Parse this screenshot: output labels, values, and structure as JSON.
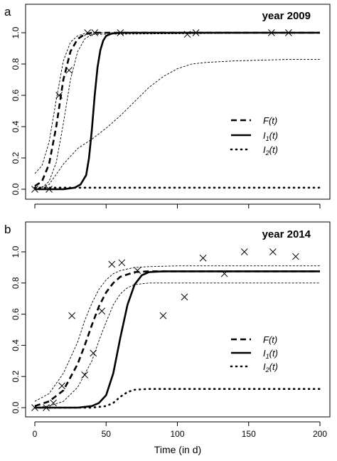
{
  "chart_data": [
    {
      "type": "line",
      "panel_label": "a",
      "title": "year  2009",
      "xlabel": "",
      "ylabel": "",
      "xlim": [
        0,
        200
      ],
      "ylim": [
        0,
        1.0
      ],
      "x_ticks": [
        0,
        50,
        100,
        150,
        200
      ],
      "y_ticks": [
        "0.0",
        "0.2",
        "0.4",
        "0.6",
        "0.8",
        "1.0"
      ],
      "legend": {
        "placement": "right-middle"
      },
      "series": [
        {
          "name": "F(t)",
          "label_main": "F",
          "label_sub": "",
          "label_arg": "(t)",
          "style": "dashed",
          "x": [
            0,
            5,
            10,
            15,
            20,
            25,
            30,
            35,
            40,
            50,
            60,
            100,
            150,
            200
          ],
          "y": [
            0.02,
            0.05,
            0.16,
            0.4,
            0.7,
            0.88,
            0.96,
            0.99,
            1.0,
            1.0,
            1.0,
            1.0,
            1.0,
            1.0
          ]
        },
        {
          "name": "I1(t)",
          "label_main": "I",
          "label_sub": "1",
          "label_arg": "(t)",
          "style": "solid",
          "x": [
            0,
            20,
            28,
            32,
            36,
            38,
            40,
            42,
            44,
            46,
            48,
            50,
            54,
            60,
            70,
            100,
            150,
            200
          ],
          "y": [
            0.0,
            0.0,
            0.01,
            0.03,
            0.09,
            0.2,
            0.38,
            0.6,
            0.78,
            0.89,
            0.95,
            0.98,
            0.995,
            1.0,
            1.0,
            1.0,
            1.0,
            1.0
          ]
        },
        {
          "name": "I2(t)",
          "label_main": "I",
          "label_sub": "2",
          "label_arg": "(t)",
          "style": "dotted",
          "x": [
            0,
            50,
            100,
            150,
            200
          ],
          "y": [
            0.01,
            0.01,
            0.01,
            0.01,
            0.01
          ]
        },
        {
          "name": "",
          "style": "thin-dashed",
          "x": [
            0,
            5,
            10,
            15,
            20,
            25,
            30,
            35,
            40,
            200
          ],
          "y": [
            0.1,
            0.15,
            0.3,
            0.57,
            0.82,
            0.94,
            0.98,
            0.995,
            1.0,
            1.0
          ]
        },
        {
          "name": "",
          "style": "thin-dashed",
          "x": [
            0,
            5,
            10,
            15,
            20,
            25,
            30,
            35,
            40,
            200
          ],
          "y": [
            0.0,
            0.01,
            0.05,
            0.17,
            0.42,
            0.7,
            0.88,
            0.96,
            0.99,
            1.0
          ]
        },
        {
          "name": "",
          "style": "thin-dashed",
          "x": [
            0,
            10,
            20,
            30,
            40,
            50,
            60,
            70,
            80,
            90,
            100,
            110,
            120,
            140,
            160,
            180,
            200
          ],
          "y": [
            0.0,
            0.03,
            0.16,
            0.26,
            0.32,
            0.39,
            0.47,
            0.56,
            0.65,
            0.72,
            0.77,
            0.8,
            0.81,
            0.82,
            0.825,
            0.83,
            0.83
          ]
        }
      ],
      "observations": {
        "x": [
          0,
          10,
          17,
          24,
          37,
          42,
          60,
          107,
          113,
          166,
          178
        ],
        "y": [
          0.0,
          0.0,
          0.6,
          0.76,
          1.0,
          1.0,
          1.0,
          0.99,
          1.0,
          1.0,
          1.0
        ]
      }
    },
    {
      "type": "line",
      "panel_label": "b",
      "title": "year  2014",
      "xlabel": "Time (in d)",
      "ylabel": "",
      "xlim": [
        0,
        200
      ],
      "ylim": [
        0,
        1.0
      ],
      "x_ticks": [
        0,
        50,
        100,
        150,
        200
      ],
      "y_ticks": [
        "0.0",
        "0.2",
        "0.4",
        "0.6",
        "0.8",
        "1.0"
      ],
      "legend": {
        "placement": "right-middle"
      },
      "series": [
        {
          "name": "F(t)",
          "label_main": "F",
          "label_sub": "",
          "label_arg": "(t)",
          "style": "dashed",
          "x": [
            0,
            10,
            20,
            30,
            35,
            40,
            45,
            50,
            55,
            60,
            70,
            80,
            100,
            150,
            200
          ],
          "y": [
            0.01,
            0.04,
            0.11,
            0.28,
            0.4,
            0.53,
            0.65,
            0.74,
            0.8,
            0.84,
            0.87,
            0.875,
            0.875,
            0.875,
            0.875
          ]
        },
        {
          "name": "I1(t)",
          "label_main": "I",
          "label_sub": "1",
          "label_arg": "(t)",
          "style": "solid",
          "x": [
            0,
            30,
            40,
            45,
            50,
            55,
            60,
            65,
            70,
            75,
            80,
            90,
            100,
            150,
            200
          ],
          "y": [
            0.0,
            0.0,
            0.01,
            0.03,
            0.08,
            0.22,
            0.45,
            0.66,
            0.79,
            0.85,
            0.87,
            0.875,
            0.875,
            0.875,
            0.875
          ]
        },
        {
          "name": "I2(t)",
          "label_main": "I",
          "label_sub": "2",
          "label_arg": "(t)",
          "style": "dotted",
          "x": [
            0,
            40,
            50,
            55,
            60,
            65,
            70,
            80,
            100,
            150,
            200
          ],
          "y": [
            0.0,
            0.0,
            0.01,
            0.03,
            0.07,
            0.1,
            0.115,
            0.12,
            0.12,
            0.12,
            0.12
          ]
        },
        {
          "name": "",
          "style": "thin-dashed",
          "x": [
            0,
            10,
            20,
            30,
            35,
            40,
            45,
            50,
            55,
            60,
            70,
            80,
            100,
            200
          ],
          "y": [
            0.04,
            0.09,
            0.22,
            0.42,
            0.56,
            0.67,
            0.76,
            0.82,
            0.86,
            0.88,
            0.9,
            0.905,
            0.91,
            0.91
          ]
        },
        {
          "name": "",
          "style": "thin-dashed",
          "x": [
            0,
            10,
            20,
            30,
            40,
            45,
            50,
            55,
            60,
            65,
            70,
            80,
            100,
            200
          ],
          "y": [
            0.0,
            0.01,
            0.04,
            0.13,
            0.3,
            0.43,
            0.55,
            0.66,
            0.73,
            0.77,
            0.79,
            0.8,
            0.8,
            0.8
          ]
        }
      ],
      "observations": {
        "x": [
          0,
          8,
          13,
          19,
          26,
          35,
          41,
          47,
          54,
          61,
          72,
          90,
          105,
          118,
          133,
          147,
          167,
          183
        ],
        "y": [
          0.0,
          0.0,
          0.03,
          0.14,
          0.59,
          0.21,
          0.35,
          0.62,
          0.92,
          0.93,
          0.88,
          0.59,
          0.71,
          0.96,
          0.86,
          1.0,
          1.0,
          0.97
        ]
      }
    }
  ]
}
